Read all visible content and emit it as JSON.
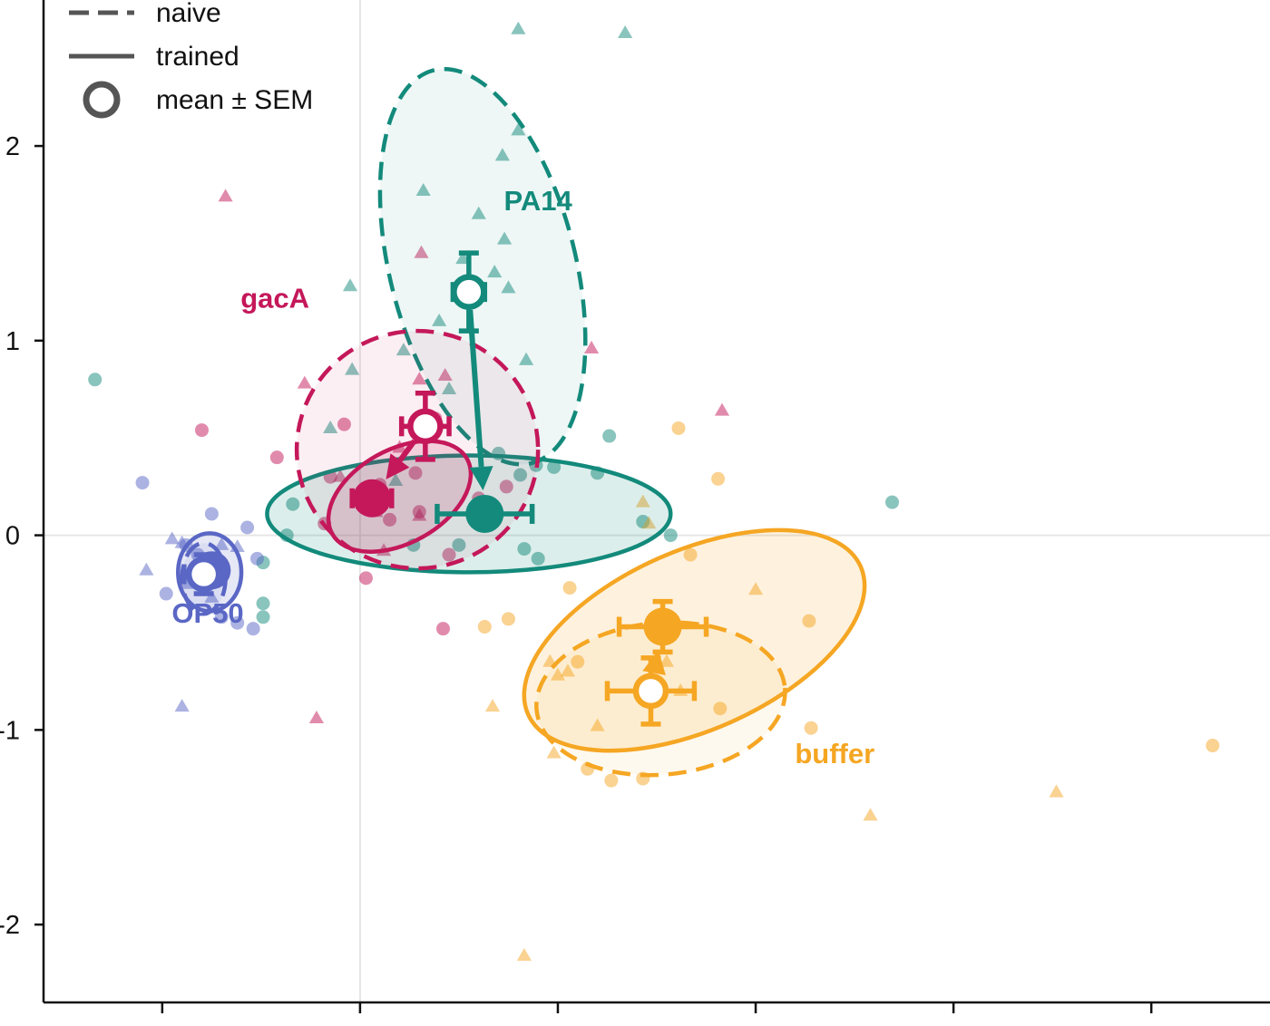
{
  "chart_data": {
    "type": "scatter",
    "title": "",
    "xlabel": "",
    "ylabel": "",
    "xlim": [
      -1.6,
      4.6
    ],
    "ylim": [
      -2.4,
      2.75
    ],
    "x_ticks": [
      -1,
      0,
      1,
      2,
      3,
      4
    ],
    "y_ticks": [
      {
        "value": 2,
        "label": "2"
      },
      {
        "value": 1,
        "label": "1"
      },
      {
        "value": 0,
        "label": "0"
      },
      {
        "value": -1,
        "label": "-1"
      },
      {
        "value": -2,
        "label": "-2"
      }
    ],
    "reference_lines": {
      "x": 0,
      "y": 0
    },
    "grid": false,
    "legend": {
      "position": "top-left",
      "entries": [
        {
          "label": "naive",
          "style": "dashed"
        },
        {
          "label": "trained",
          "style": "solid"
        },
        {
          "label": "mean ± SEM",
          "style": "open-circle"
        }
      ]
    },
    "series": [
      {
        "name": "PA14",
        "color": "#138a7b",
        "label_at": [
          0.9,
          1.67
        ],
        "naive": {
          "mean": [
            0.55,
            1.25
          ],
          "sem_x": 0.08,
          "sem_y": 0.2,
          "ellipse": {
            "center": [
              0.62,
              1.38
            ],
            "rx": 0.47,
            "ry": 1.04,
            "angle_deg": -14
          },
          "points": [
            [
              0.8,
              2.6
            ],
            [
              1.34,
              2.58
            ],
            [
              0.8,
              2.08
            ],
            [
              0.72,
              1.95
            ],
            [
              0.32,
              1.77
            ],
            [
              0.6,
              1.65
            ],
            [
              0.73,
              1.52
            ],
            [
              0.52,
              1.42
            ],
            [
              0.68,
              1.35
            ],
            [
              0.75,
              1.27
            ],
            [
              -0.05,
              1.28
            ],
            [
              0.4,
              1.1
            ],
            [
              0.22,
              0.95
            ],
            [
              0.84,
              0.9
            ],
            [
              -0.04,
              0.85
            ],
            [
              0.33,
              0.62
            ],
            [
              -0.15,
              0.55
            ],
            [
              0.45,
              0.75
            ],
            [
              0.18,
              0.28
            ]
          ]
        },
        "trained": {
          "mean": [
            0.63,
            0.11
          ],
          "sem_x": 0.24,
          "sem_y": 0.05,
          "ellipse": {
            "center": [
              0.55,
              0.11
            ],
            "rx": 1.02,
            "ry": 0.3,
            "angle_deg": 0
          },
          "points": [
            [
              -1.34,
              0.8
            ],
            [
              1.26,
              0.51
            ],
            [
              2.69,
              0.17
            ],
            [
              1.2,
              0.32
            ],
            [
              0.89,
              0.36
            ],
            [
              0.7,
              0.42
            ],
            [
              0.81,
              0.31
            ],
            [
              0.98,
              0.35
            ],
            [
              1.43,
              0.07
            ],
            [
              -0.34,
              0.16
            ],
            [
              0.27,
              -0.05
            ],
            [
              0.83,
              -0.07
            ],
            [
              0.9,
              -0.12
            ],
            [
              -0.49,
              -0.14
            ],
            [
              -0.49,
              -0.35
            ],
            [
              -0.49,
              -0.42
            ],
            [
              1.57,
              0.0
            ],
            [
              -0.37,
              0.0
            ],
            [
              0.5,
              -0.05
            ]
          ]
        }
      },
      {
        "name": "gacA",
        "color": "#c4185a",
        "label_at": [
          -0.43,
          1.17
        ],
        "naive": {
          "mean": [
            0.33,
            0.56
          ],
          "sem_x": 0.12,
          "sem_y": 0.17,
          "ellipse": {
            "center": [
              0.29,
              0.44
            ],
            "rx": 0.61,
            "ry": 0.61,
            "angle_deg": 0
          },
          "points": [
            [
              -0.68,
              1.74
            ],
            [
              1.17,
              0.96
            ],
            [
              0.31,
              1.45
            ],
            [
              0.43,
              0.82
            ],
            [
              0.3,
              0.8
            ],
            [
              -0.28,
              0.78
            ],
            [
              1.83,
              0.64
            ],
            [
              0.2,
              0.45
            ],
            [
              -0.1,
              0.3
            ],
            [
              0.08,
              0.12
            ],
            [
              0.12,
              -0.08
            ],
            [
              0.3,
              0.1
            ],
            [
              -0.22,
              -0.94
            ]
          ]
        },
        "trained": {
          "mean": [
            0.06,
            0.19
          ],
          "sem_x": 0.1,
          "sem_y": 0.03,
          "ellipse": {
            "center": [
              0.2,
              0.2
            ],
            "rx": 0.39,
            "ry": 0.24,
            "angle_deg": -29
          },
          "points": [
            [
              -0.8,
              0.54
            ],
            [
              -0.08,
              0.57
            ],
            [
              -0.42,
              0.4
            ],
            [
              -0.15,
              0.3
            ],
            [
              0.38,
              0.6
            ],
            [
              0.28,
              0.32
            ],
            [
              0.1,
              0.26
            ],
            [
              0.15,
              0.08
            ],
            [
              -0.18,
              0.06
            ],
            [
              0.45,
              -0.1
            ],
            [
              0.03,
              -0.22
            ],
            [
              0.42,
              -0.48
            ],
            [
              0.74,
              0.25
            ],
            [
              0.3,
              0.12
            ],
            [
              0.6,
              0.19
            ]
          ]
        }
      },
      {
        "name": "OP50",
        "color": "#5a67c5",
        "label_at": [
          -0.77,
          -0.45
        ],
        "naive": {
          "mean": [
            -0.79,
            -0.2
          ],
          "sem_x": 0.1,
          "sem_y": 0.1,
          "ellipse": {
            "center": [
              -0.79,
              -0.22
            ],
            "rx": 0.11,
            "ry": 0.18,
            "angle_deg": 0
          },
          "points": [
            [
              -1.08,
              -0.18
            ],
            [
              -0.95,
              -0.02
            ],
            [
              -0.9,
              -0.04
            ],
            [
              -0.7,
              -0.05
            ],
            [
              -0.62,
              -0.06
            ],
            [
              -0.75,
              -0.32
            ],
            [
              -0.88,
              -0.25
            ],
            [
              -0.9,
              -0.88
            ]
          ]
        },
        "trained": {
          "mean": [
            -0.75,
            -0.18
          ],
          "sem_x": 0.04,
          "sem_y": 0.04,
          "ellipse": {
            "center": [
              -0.76,
              -0.19
            ],
            "rx": 0.16,
            "ry": 0.2,
            "angle_deg": 0
          },
          "points": [
            [
              -1.1,
              0.27
            ],
            [
              -0.75,
              0.11
            ],
            [
              -0.57,
              0.04
            ],
            [
              -0.52,
              -0.12
            ],
            [
              -0.88,
              -0.05
            ],
            [
              -0.98,
              -0.3
            ],
            [
              -0.62,
              -0.45
            ],
            [
              -0.54,
              -0.48
            ],
            [
              -0.7,
              -0.42
            ],
            [
              -0.82,
              -0.1
            ]
          ]
        }
      },
      {
        "name": "buffer",
        "color": "#f5a623",
        "label_at": [
          2.4,
          -1.17
        ],
        "naive": {
          "mean": [
            1.47,
            -0.8
          ],
          "sem_x": 0.22,
          "sem_y": 0.17,
          "ellipse": {
            "center": [
              1.52,
              -0.84
            ],
            "rx": 0.63,
            "ry": 0.39,
            "angle_deg": -5
          },
          "points": [
            [
              1.46,
              0.06
            ],
            [
              1.43,
              0.17
            ],
            [
              2.0,
              -0.28
            ],
            [
              0.96,
              -0.65
            ],
            [
              1.0,
              -0.72
            ],
            [
              1.05,
              -0.7
            ],
            [
              1.55,
              -0.65
            ],
            [
              1.62,
              -0.8
            ],
            [
              0.67,
              -0.88
            ],
            [
              1.2,
              -0.98
            ],
            [
              0.98,
              -1.12
            ],
            [
              2.58,
              -1.44
            ],
            [
              3.52,
              -1.32
            ],
            [
              0.83,
              -2.16
            ]
          ]
        },
        "trained": {
          "mean": [
            1.53,
            -0.47
          ],
          "sem_x": 0.22,
          "sem_y": 0.13,
          "ellipse": {
            "center": [
              1.69,
              -0.54
            ],
            "rx": 0.92,
            "ry": 0.46,
            "angle_deg": -24
          },
          "points": [
            [
              1.61,
              0.55
            ],
            [
              1.81,
              0.29
            ],
            [
              1.67,
              -0.1
            ],
            [
              1.06,
              -0.27
            ],
            [
              0.75,
              -0.43
            ],
            [
              0.63,
              -0.47
            ],
            [
              2.27,
              -0.44
            ],
            [
              1.1,
              -0.65
            ],
            [
              1.82,
              -0.89
            ],
            [
              2.28,
              -0.99
            ],
            [
              1.15,
              -1.2
            ],
            [
              1.27,
              -1.26
            ],
            [
              1.43,
              -1.25
            ],
            [
              4.31,
              -1.08
            ]
          ]
        }
      }
    ]
  }
}
